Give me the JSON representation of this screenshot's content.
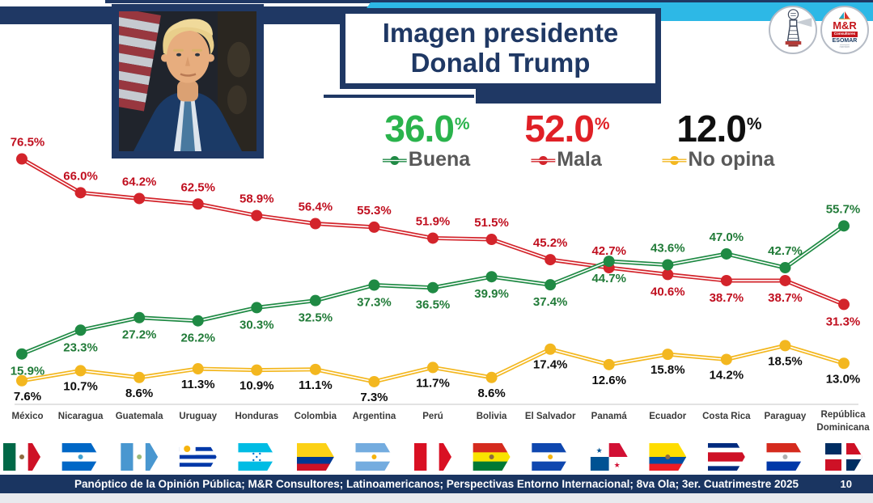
{
  "header": {
    "title_line1": "Imagen presidente",
    "title_line2": "Donald Trump",
    "logos": {
      "lighthouse_name": "panoptico-lighthouse",
      "mr": {
        "name": "M&R",
        "band": "Consultores",
        "esomar": "ESOMAR",
        "sub": "member"
      }
    }
  },
  "summary": [
    {
      "value": "36.0",
      "unit": "%",
      "label": "Buena",
      "color": "#2ab34c",
      "marker_color": "#1f8a44"
    },
    {
      "value": "52.0",
      "unit": "%",
      "label": "Mala",
      "color": "#e02026",
      "marker_color": "#d3242b"
    },
    {
      "value": "12.0",
      "unit": "%",
      "label": "No opina",
      "color": "#0f0f0f",
      "marker_color": "#f3b71f"
    }
  ],
  "chart_data": {
    "type": "line",
    "title": "Imagen presidente Donald Trump",
    "categories": [
      "México",
      "Nicaragua",
      "Guatemala",
      "Uruguay",
      "Honduras",
      "Colombia",
      "Argentina",
      "Perú",
      "Bolivia",
      "El Salvador",
      "Panamá",
      "Ecuador",
      "Costa Rica",
      "Paraguay",
      "República Dominicana"
    ],
    "series": [
      {
        "name": "Mala",
        "color": "#d3242b",
        "label_color": "#c00f1f",
        "values": [
          76.5,
          66.0,
          64.2,
          62.5,
          58.9,
          56.4,
          55.3,
          51.9,
          51.5,
          45.2,
          42.7,
          40.6,
          38.7,
          38.7,
          31.3
        ],
        "label_sides": [
          "a",
          "a",
          "a",
          "a",
          "a",
          "a",
          "a",
          "a",
          "a",
          "a",
          "a",
          "b",
          "b",
          "b",
          "b"
        ]
      },
      {
        "name": "Buena",
        "color": "#1f8a44",
        "label_color": "#217b38",
        "values": [
          15.9,
          23.3,
          27.2,
          26.2,
          30.3,
          32.5,
          37.3,
          36.5,
          39.9,
          37.4,
          44.7,
          43.6,
          47.0,
          42.7,
          55.7
        ],
        "label_sides": [
          "b",
          "b",
          "b",
          "b",
          "b",
          "b",
          "b",
          "b",
          "b",
          "b",
          "b",
          "a",
          "a",
          "a",
          "a"
        ]
      },
      {
        "name": "No opina",
        "color": "#f3b71f",
        "label_color": "#0d0d0d",
        "values": [
          7.6,
          10.7,
          8.6,
          11.3,
          10.9,
          11.1,
          7.3,
          11.7,
          8.6,
          17.4,
          12.6,
          15.8,
          14.2,
          18.5,
          13.0
        ],
        "label_sides": [
          "b",
          "b",
          "b",
          "b",
          "b",
          "b",
          "b",
          "b",
          "b",
          "b",
          "b",
          "b",
          "b",
          "b",
          "b"
        ]
      }
    ],
    "ylim": [
      0,
      88
    ],
    "grid": false,
    "legend_position": "top",
    "legend": [
      {
        "label": "Buena",
        "headline": "36.0%"
      },
      {
        "label": "Mala",
        "headline": "52.0%"
      },
      {
        "label": "No opina",
        "headline": "12.0%"
      }
    ]
  },
  "flags": [
    {
      "country": "México",
      "type": "v",
      "colors": [
        "#006847",
        "#ffffff",
        "#ce1126"
      ],
      "emblem": {
        "shape": "circle",
        "color": "#8f6b3f"
      }
    },
    {
      "country": "Nicaragua",
      "type": "h",
      "colors": [
        "#0067c6",
        "#ffffff",
        "#0067c6"
      ],
      "emblem": {
        "shape": "circle",
        "color": "#3fa0d0"
      }
    },
    {
      "country": "Guatemala",
      "type": "v",
      "colors": [
        "#4997d0",
        "#ffffff",
        "#4997d0"
      ],
      "emblem": {
        "shape": "circle",
        "color": "#9ab97a"
      }
    },
    {
      "country": "Uruguay",
      "type": "h",
      "colors": [
        "#ffffff",
        "#0038a8",
        "#ffffff",
        "#0038a8",
        "#ffffff",
        "#0038a8",
        "#ffffff"
      ],
      "canton": {
        "color": "#ffffff",
        "sun": "#f6b40e"
      }
    },
    {
      "country": "Honduras",
      "type": "h",
      "colors": [
        "#00bce4",
        "#ffffff",
        "#00bce4"
      ],
      "emblem": {
        "shape": "stars",
        "color": "#0073cf"
      }
    },
    {
      "country": "Colombia",
      "type": "h",
      "colors": [
        "#fcd116",
        "#003893",
        "#ce1126"
      ],
      "weights": [
        2,
        1,
        1
      ]
    },
    {
      "country": "Argentina",
      "type": "h",
      "colors": [
        "#74acdf",
        "#ffffff",
        "#74acdf"
      ],
      "emblem": {
        "shape": "circle",
        "color": "#f6b40e"
      }
    },
    {
      "country": "Perú",
      "type": "v",
      "colors": [
        "#d91023",
        "#ffffff",
        "#d91023"
      ]
    },
    {
      "country": "Bolivia",
      "type": "h",
      "colors": [
        "#d52b1e",
        "#f9e300",
        "#007934"
      ],
      "emblem": {
        "shape": "circle",
        "color": "#8f6b3f"
      }
    },
    {
      "country": "El Salvador",
      "type": "h",
      "colors": [
        "#0f47af",
        "#ffffff",
        "#0f47af"
      ],
      "emblem": {
        "shape": "circle",
        "color": "#f6b40e"
      }
    },
    {
      "country": "Panamá",
      "type": "q",
      "colors": [
        "#ffffff",
        "#d21034",
        "#005293",
        "#ffffff"
      ],
      "stars": [
        "#005293",
        "#d21034"
      ]
    },
    {
      "country": "Ecuador",
      "type": "h",
      "colors": [
        "#ffdd00",
        "#034ea2",
        "#ed1c24"
      ],
      "weights": [
        2,
        1,
        1
      ],
      "emblem": {
        "shape": "circle",
        "color": "#8f6b3f"
      }
    },
    {
      "country": "Costa Rica",
      "type": "h",
      "colors": [
        "#002b7f",
        "#ffffff",
        "#ce1126",
        "#ffffff",
        "#002b7f"
      ],
      "weights": [
        1,
        1,
        2,
        1,
        1
      ]
    },
    {
      "country": "Paraguay",
      "type": "h",
      "colors": [
        "#d52b1e",
        "#ffffff",
        "#0038a8"
      ],
      "emblem": {
        "shape": "circle",
        "color": "#b0b0b0"
      }
    },
    {
      "country": "República Dominicana",
      "type": "q-cross",
      "colors": [
        "#002d62",
        "#ce1126",
        "#ce1126",
        "#002d62"
      ],
      "cross": "#ffffff"
    }
  ],
  "footer": {
    "text": "Panóptico de la Opinión Pública; M&R Consultores; Latinoamericanos; Perspectivas Entorno Internacional; 8va Ola; 3er. Cuatrimestre 2025",
    "page": "10"
  }
}
